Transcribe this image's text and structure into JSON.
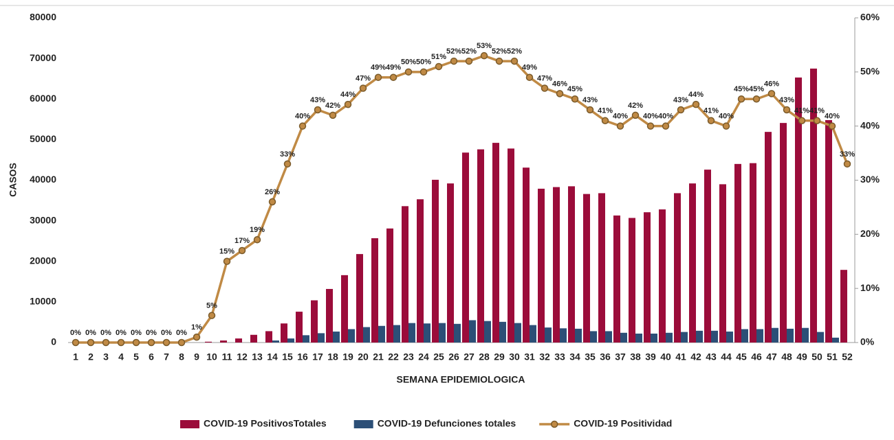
{
  "chart_data": {
    "type": "bar-line",
    "x_label": "SEMANA EPIDEMIOLOGICA",
    "y_label": "CASOS",
    "categories": [
      "1",
      "2",
      "3",
      "4",
      "5",
      "6",
      "7",
      "8",
      "9",
      "10",
      "11",
      "12",
      "13",
      "14",
      "15",
      "16",
      "17",
      "18",
      "19",
      "20",
      "21",
      "22",
      "23",
      "24",
      "25",
      "26",
      "27",
      "28",
      "29",
      "30",
      "31",
      "32",
      "33",
      "34",
      "35",
      "36",
      "37",
      "38",
      "39",
      "40",
      "41",
      "42",
      "43",
      "44",
      "45",
      "46",
      "47",
      "48",
      "49",
      "50",
      "51",
      "52"
    ],
    "ylim": [
      0,
      80000
    ],
    "yticks": [
      0,
      10000,
      20000,
      30000,
      40000,
      50000,
      60000,
      70000,
      80000
    ],
    "y2lim": [
      0,
      60
    ],
    "y2ticks": [
      {
        "value": 0,
        "label": "0%"
      },
      {
        "value": 10,
        "label": "10%"
      },
      {
        "value": 20,
        "label": "20%"
      },
      {
        "value": 30,
        "label": "30%"
      },
      {
        "value": 40,
        "label": "40%"
      },
      {
        "value": 50,
        "label": "50%"
      },
      {
        "value": 60,
        "label": "60%"
      }
    ],
    "series": [
      {
        "name": "COVID-19 PositivosTotales",
        "kind": "bar",
        "color": "#9b0c3a",
        "values": [
          0,
          0,
          0,
          0,
          0,
          0,
          0,
          0,
          0,
          200,
          500,
          1000,
          1900,
          2800,
          4700,
          7600,
          10400,
          13200,
          16600,
          21800,
          25700,
          28100,
          33600,
          35300,
          40100,
          39200,
          46800,
          47600,
          49200,
          47800,
          43100,
          37900,
          38300,
          38500,
          36600,
          36800,
          31300,
          30700,
          32100,
          32800,
          36800,
          39200,
          42600,
          39000,
          44000,
          44200,
          51900,
          54100,
          65300,
          67500,
          54800,
          17900
        ]
      },
      {
        "name": "COVID-19 Defunciones totales",
        "kind": "bar",
        "color": "#2c4f77",
        "values": [
          0,
          0,
          0,
          0,
          0,
          0,
          0,
          0,
          0,
          0,
          0,
          0,
          0,
          500,
          1000,
          1800,
          2300,
          2700,
          3300,
          3800,
          4100,
          4300,
          4800,
          4700,
          4800,
          4600,
          5500,
          5300,
          5100,
          4800,
          4300,
          3700,
          3500,
          3400,
          2800,
          2800,
          2400,
          2200,
          2200,
          2400,
          2600,
          2900,
          2900,
          2700,
          3300,
          3300,
          3600,
          3400,
          3600,
          2600,
          1200,
          0
        ]
      },
      {
        "name": "COVID-19 Positividad",
        "kind": "line",
        "axis": "y2",
        "color": "#c08a45",
        "values": [
          0,
          0,
          0,
          0,
          0,
          0,
          0,
          0,
          1,
          5,
          15,
          17,
          19,
          26,
          33,
          40,
          43,
          42,
          44,
          47,
          49,
          49,
          50,
          50,
          51,
          52,
          52,
          53,
          52,
          52,
          49,
          47,
          46,
          45,
          43,
          41,
          40,
          42,
          40,
          40,
          43,
          44,
          41,
          40,
          45,
          45,
          46,
          43,
          41,
          41,
          40,
          33
        ],
        "value_labels": [
          "0%",
          "0%",
          "0%",
          "0%",
          "0%",
          "0%",
          "0%",
          "0%",
          "1%",
          "5%",
          "15%",
          "17%",
          "19%",
          "26%",
          "33%",
          "40%",
          "43%",
          "42%",
          "44%",
          "47%",
          "49%",
          "49%",
          "50%",
          "50%",
          "51%",
          "52%",
          "52%",
          "53%",
          "52%",
          "52%",
          "49%",
          "47%",
          "46%",
          "45%",
          "43%",
          "41%",
          "40%",
          "42%",
          "40%",
          "40%",
          "43%",
          "44%",
          "41%",
          "40%",
          "45%",
          "45%",
          "46%",
          "43%",
          "41%",
          "41%",
          "40%",
          "33%"
        ]
      }
    ]
  }
}
